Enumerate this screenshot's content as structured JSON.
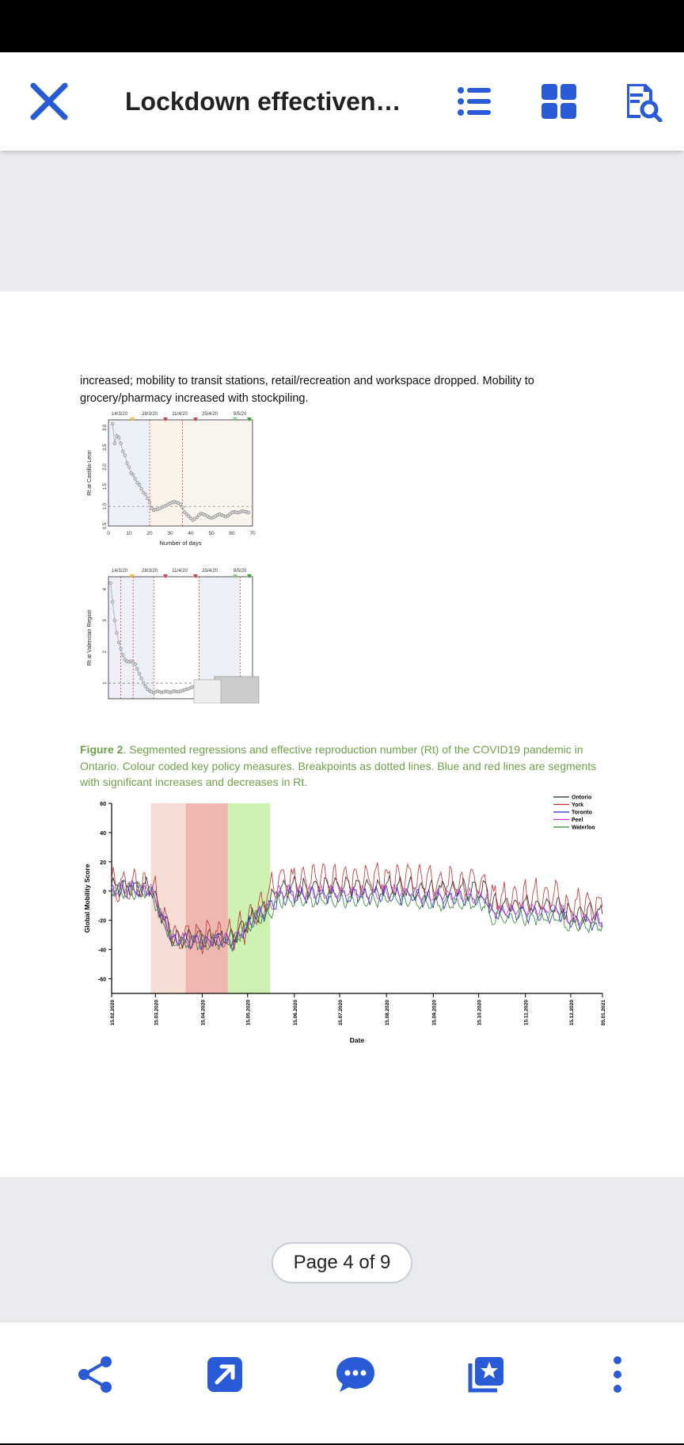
{
  "app": {
    "title": "Lockdown effectivene…",
    "page_indicator": "Page 4 of 9",
    "accent": "#2a5bd7"
  },
  "toolbar_icons": [
    "close-icon",
    "list-icon",
    "grid-icon",
    "search-document-icon"
  ],
  "bottom_icons": [
    "share-icon",
    "open-external-icon",
    "comment-icon",
    "bookmark-star-icon",
    "more-vertical-icon"
  ],
  "document": {
    "paragraph": "increased; mobility to transit stations, retail/recreation and workspace dropped. Mobility to grocery/pharmacy increased with stockpiling.",
    "caption_label": "Figure 2",
    "caption_text": ". Segmented regressions and effective reproduction number (Rt) of the COVID19 pandemic in Ontario. Colour coded key policy measures. Breakpoints as dotted lines. Blue and red lines are segments with significant increases and decreases in Rt."
  },
  "chart_data": [
    {
      "type": "scatter",
      "ylabel": "Rt at Castilla-Leon",
      "xlabel": "Number of days",
      "top_dates": [
        "14/3/20",
        "28/3/20",
        "11/4/20",
        "25/4/20",
        "9/5/20"
      ],
      "xlim": [
        0,
        70
      ],
      "xticks": [
        0,
        10,
        20,
        30,
        40,
        50,
        60,
        70
      ],
      "ylim": [
        0.5,
        3.2
      ],
      "yticks": [
        0.5,
        1.0,
        1.5,
        2.0,
        2.5,
        3.0
      ],
      "breakpoints": [
        20,
        36
      ],
      "x": [
        2,
        3,
        4,
        5,
        6,
        7,
        8,
        9,
        10,
        11,
        12,
        13,
        14,
        15,
        16,
        17,
        18,
        19,
        20,
        21,
        22,
        23,
        24,
        25,
        26,
        27,
        28,
        29,
        30,
        31,
        32,
        33,
        34,
        35,
        36,
        37,
        38,
        39,
        40,
        41,
        42,
        43,
        44,
        45,
        46,
        47,
        48,
        49,
        50,
        51,
        52,
        53,
        54,
        55,
        56,
        57,
        58,
        59,
        60,
        61,
        62,
        63,
        64,
        65,
        66,
        67,
        68
      ],
      "y": [
        3.1,
        2.6,
        2.8,
        2.75,
        2.6,
        2.4,
        2.3,
        2.1,
        2.0,
        1.85,
        1.8,
        1.7,
        1.6,
        1.55,
        1.45,
        1.35,
        1.3,
        1.2,
        1.1,
        0.95,
        0.9,
        0.92,
        0.93,
        0.95,
        0.98,
        1.0,
        1.02,
        1.05,
        1.08,
        1.1,
        1.12,
        1.1,
        1.08,
        1.05,
        0.98,
        0.85,
        0.8,
        0.75,
        0.7,
        0.65,
        0.68,
        0.72,
        0.78,
        0.82,
        0.8,
        0.78,
        0.75,
        0.72,
        0.7,
        0.72,
        0.75,
        0.78,
        0.8,
        0.78,
        0.76,
        0.74,
        0.76,
        0.8,
        0.84,
        0.86,
        0.85,
        0.84,
        0.86,
        0.88,
        0.87,
        0.86,
        0.84
      ]
    },
    {
      "type": "scatter",
      "ylabel": "Rt at Valencian Region",
      "top_dates": [
        "14/3/20",
        "28/3/20",
        "11/4/20",
        "25/4/20",
        "9/5/20"
      ],
      "ylim": [
        0.5,
        4.4
      ],
      "yticks": [
        1,
        2,
        3,
        4
      ],
      "x": [
        1,
        2,
        3,
        4,
        5,
        6,
        7,
        8,
        9,
        10,
        11,
        12,
        13,
        14,
        15,
        16,
        17,
        18,
        19,
        20,
        21,
        22,
        23,
        24,
        25,
        26,
        27,
        28,
        29,
        30,
        31,
        32,
        33,
        34,
        35,
        36,
        37,
        38,
        39,
        40,
        41,
        42,
        43,
        44,
        45,
        46,
        47,
        48,
        49,
        50,
        51,
        52,
        53,
        54,
        55,
        56,
        57,
        58,
        59,
        60,
        61,
        62,
        63,
        64,
        65,
        66,
        67,
        68
      ],
      "y": [
        4.2,
        3.6,
        3.0,
        2.6,
        2.3,
        2.1,
        1.9,
        1.75,
        1.7,
        1.68,
        1.7,
        1.65,
        1.6,
        1.45,
        1.3,
        1.15,
        1.0,
        0.9,
        0.8,
        0.75,
        0.72,
        0.7,
        0.72,
        0.74,
        0.72,
        0.7,
        0.72,
        0.74,
        0.72,
        0.7,
        0.72,
        0.75,
        0.73,
        0.72,
        0.74,
        0.76,
        0.78,
        0.8,
        0.82,
        0.85,
        0.88,
        0.9,
        0.88,
        0.86,
        0.88,
        0.9,
        0.88,
        0.86,
        0.85,
        0.84,
        0.86,
        0.88,
        0.86,
        0.85,
        0.84,
        0.83,
        0.85,
        0.87,
        0.88,
        0.9,
        0.92,
        0.95,
        0.98,
        1.0,
        1.05,
        1.1,
        1.08,
        1.12
      ]
    },
    {
      "type": "line",
      "ylabel": "Global Mobility Score",
      "xlabel": "Date",
      "ylim": [
        -70,
        60
      ],
      "yticks": [
        -60,
        -40,
        -20,
        0,
        20,
        40,
        60
      ],
      "x_labels": [
        "15.02.2020",
        "15.03.2020",
        "15.04.2020",
        "15.05.2020",
        "15.06.2020",
        "15.07.2020",
        "15.08.2020",
        "15.09.2020",
        "15.10.2020",
        "15.11.2020",
        "15.12.2020",
        "05.01.2021"
      ],
      "legend": [
        "Ontorio",
        "York",
        "Toronto",
        "Peel",
        "Waterloo"
      ],
      "legend_placement": "top-right",
      "colors": {
        "Ontorio": "#222222",
        "York": "#c0302b",
        "Toronto": "#2a2ad0",
        "Peel": "#c03ad0",
        "Waterloo": "#2c8a2c"
      },
      "shaded_periods": [
        {
          "from_day": 26,
          "to_day": 49,
          "color": "#f4d7cf"
        },
        {
          "from_day": 49,
          "to_day": 77,
          "color": "#ecaaa4"
        },
        {
          "from_day": 77,
          "to_day": 105,
          "color": "#c5f0a4"
        }
      ],
      "total_days": 325
    }
  ]
}
